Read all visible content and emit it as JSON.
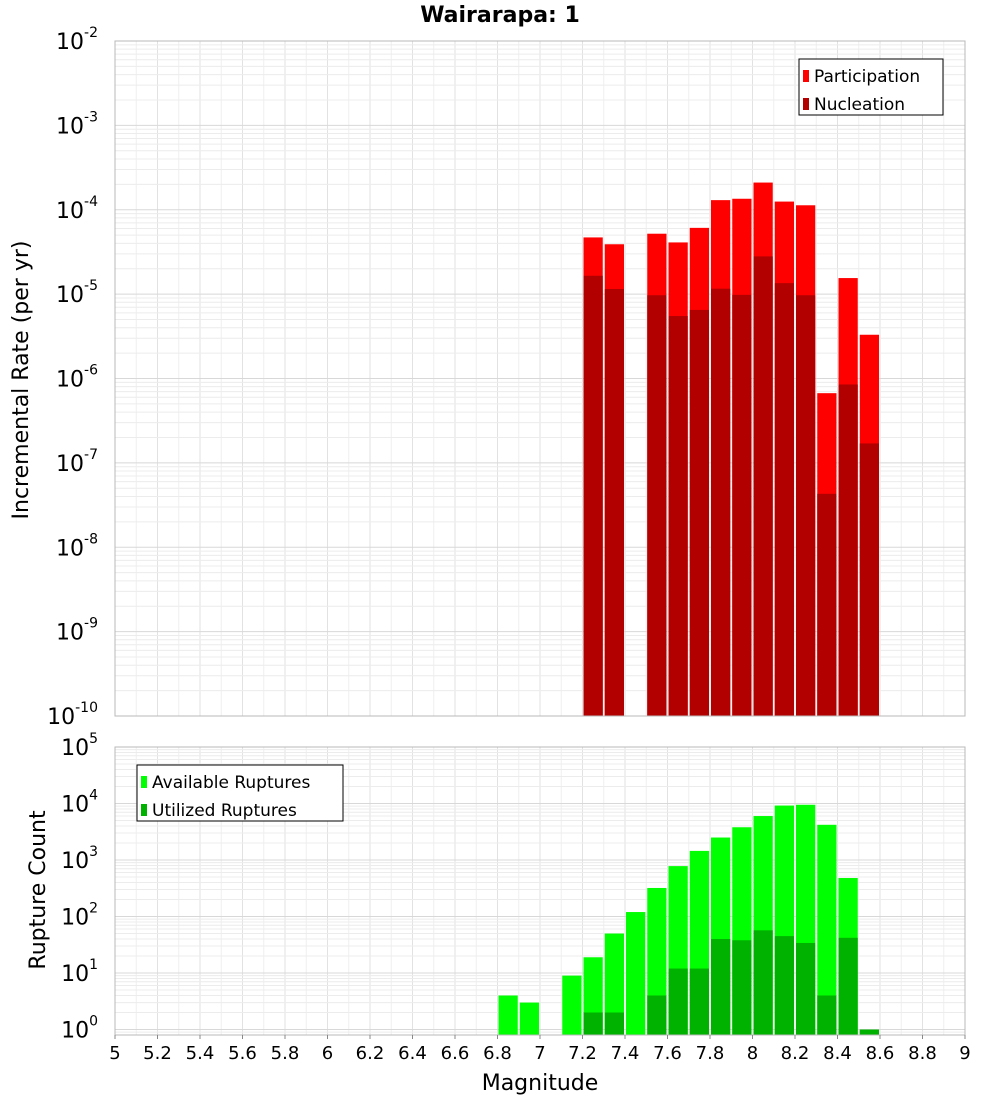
{
  "chart_data": [
    {
      "type": "bar",
      "title": "Wairarapa: 1",
      "xlabel": "",
      "ylabel": "Incremental Rate (per yr)",
      "yscale": "log",
      "ylim": [
        1e-10,
        0.01
      ],
      "xlim": [
        5,
        9
      ],
      "grid": true,
      "legend_position": "top-right",
      "bar_width": 0.1,
      "series": [
        {
          "name": "Participation",
          "color": "#ff0000",
          "points": [
            {
              "x": 7.25,
              "y": 4.7e-05
            },
            {
              "x": 7.35,
              "y": 3.9e-05
            },
            {
              "x": 7.55,
              "y": 5.2e-05
            },
            {
              "x": 7.65,
              "y": 4.1e-05
            },
            {
              "x": 7.75,
              "y": 6.1e-05
            },
            {
              "x": 7.85,
              "y": 0.00013
            },
            {
              "x": 7.95,
              "y": 0.000135
            },
            {
              "x": 8.05,
              "y": 0.00021
            },
            {
              "x": 8.15,
              "y": 0.000125
            },
            {
              "x": 8.25,
              "y": 0.000113
            },
            {
              "x": 8.35,
              "y": 6.7e-07
            },
            {
              "x": 8.45,
              "y": 1.55e-05
            },
            {
              "x": 8.55,
              "y": 3.3e-06
            }
          ]
        },
        {
          "name": "Nucleation",
          "color": "#b20000",
          "points": [
            {
              "x": 7.25,
              "y": 1.65e-05
            },
            {
              "x": 7.35,
              "y": 1.15e-05
            },
            {
              "x": 7.55,
              "y": 9.7e-06
            },
            {
              "x": 7.65,
              "y": 5.5e-06
            },
            {
              "x": 7.75,
              "y": 6.5e-06
            },
            {
              "x": 7.85,
              "y": 1.16e-05
            },
            {
              "x": 7.95,
              "y": 9.8e-06
            },
            {
              "x": 8.05,
              "y": 2.8e-05
            },
            {
              "x": 8.15,
              "y": 1.35e-05
            },
            {
              "x": 8.25,
              "y": 9.7e-06
            },
            {
              "x": 8.35,
              "y": 4.3e-08
            },
            {
              "x": 8.45,
              "y": 8.5e-07
            },
            {
              "x": 8.55,
              "y": 1.7e-07
            }
          ]
        }
      ]
    },
    {
      "type": "bar",
      "xlabel": "Magnitude",
      "ylabel": "Rupture Count",
      "yscale": "log",
      "ylim": [
        0.8,
        100000
      ],
      "xlim": [
        5,
        9
      ],
      "grid": true,
      "legend_position": "top-left",
      "bar_width": 0.1,
      "xticks": [
        "5",
        "5.2",
        "5.4",
        "5.6",
        "5.8",
        "6",
        "6.2",
        "6.4",
        "6.6",
        "6.8",
        "7",
        "7.2",
        "7.4",
        "7.6",
        "7.8",
        "8",
        "8.2",
        "8.4",
        "8.6",
        "8.8",
        "9"
      ],
      "series": [
        {
          "name": "Available Ruptures",
          "color": "#00ff00",
          "points": [
            {
              "x": 6.85,
              "y": 4
            },
            {
              "x": 6.95,
              "y": 3
            },
            {
              "x": 7.15,
              "y": 9
            },
            {
              "x": 7.25,
              "y": 19
            },
            {
              "x": 7.35,
              "y": 50
            },
            {
              "x": 7.45,
              "y": 120
            },
            {
              "x": 7.55,
              "y": 320
            },
            {
              "x": 7.65,
              "y": 780
            },
            {
              "x": 7.75,
              "y": 1450
            },
            {
              "x": 7.85,
              "y": 2500
            },
            {
              "x": 7.95,
              "y": 3800
            },
            {
              "x": 8.05,
              "y": 6000
            },
            {
              "x": 8.15,
              "y": 9200
            },
            {
              "x": 8.25,
              "y": 9500
            },
            {
              "x": 8.35,
              "y": 4200
            },
            {
              "x": 8.45,
              "y": 480
            },
            {
              "x": 8.55,
              "y": 1
            }
          ]
        },
        {
          "name": "Utilized Ruptures",
          "color": "#00b200",
          "points": [
            {
              "x": 7.25,
              "y": 2
            },
            {
              "x": 7.35,
              "y": 2
            },
            {
              "x": 7.55,
              "y": 4
            },
            {
              "x": 7.65,
              "y": 12
            },
            {
              "x": 7.75,
              "y": 12
            },
            {
              "x": 7.85,
              "y": 40
            },
            {
              "x": 7.95,
              "y": 38
            },
            {
              "x": 8.05,
              "y": 57
            },
            {
              "x": 8.15,
              "y": 45
            },
            {
              "x": 8.25,
              "y": 34
            },
            {
              "x": 8.35,
              "y": 4
            },
            {
              "x": 8.45,
              "y": 42
            },
            {
              "x": 8.55,
              "y": 1
            }
          ]
        }
      ]
    }
  ]
}
